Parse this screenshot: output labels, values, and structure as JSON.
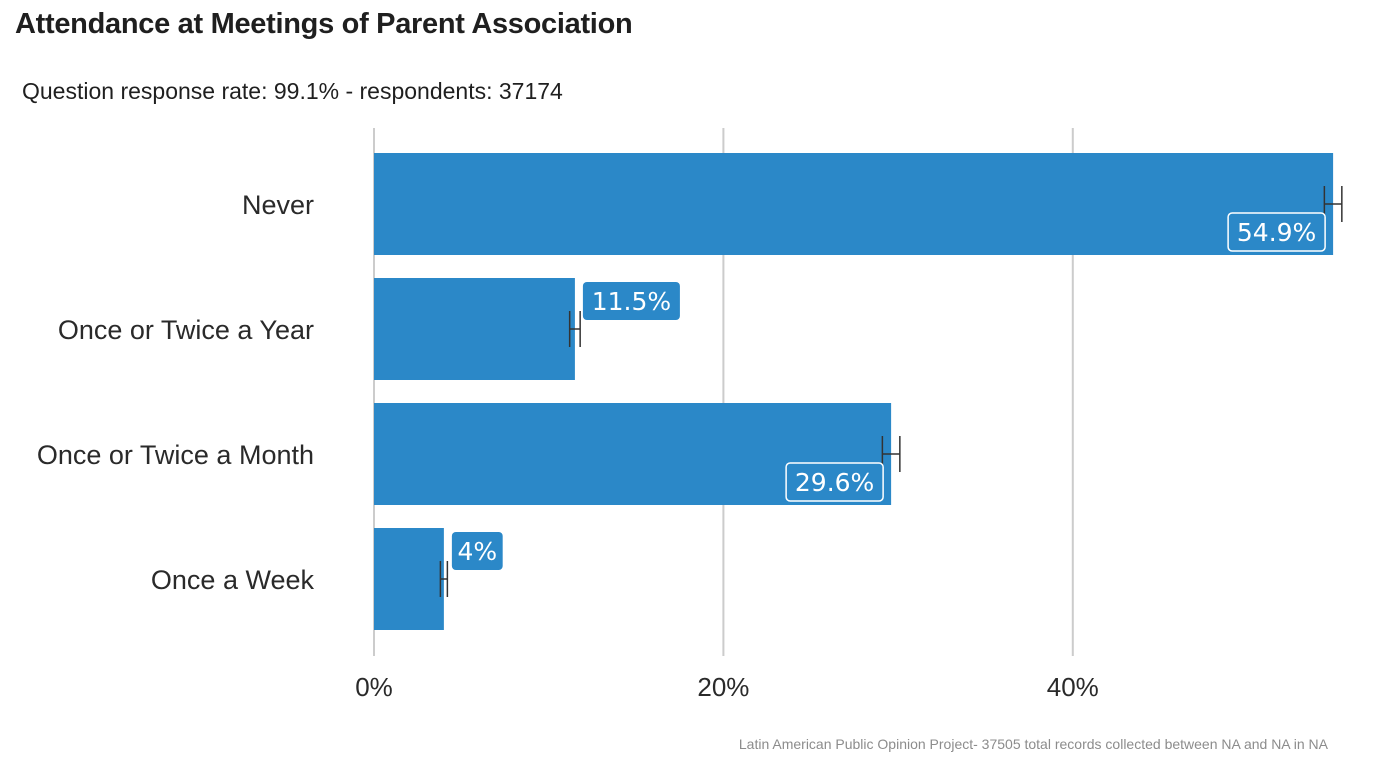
{
  "chart_data": {
    "type": "bar",
    "orientation": "horizontal",
    "title": "Attendance at Meetings of Parent Association",
    "subtitle": "Question response rate: 99.1%  - respondents: 37174",
    "caption": "Latin American Public Opinion Project- 37505 total records collected between NA and NA in  NA",
    "categories": [
      "Never",
      "Once or Twice a Year",
      "Once or Twice a Month",
      "Once a Week"
    ],
    "values": [
      54.9,
      11.5,
      29.6,
      4.0
    ],
    "value_labels": [
      "54.9%",
      "11.5%",
      "29.6%",
      "4%"
    ],
    "error_margin": [
      0.5,
      0.3,
      0.5,
      0.2
    ],
    "xlim": [
      0,
      55
    ],
    "x_ticks": [
      0,
      20,
      40
    ],
    "x_tick_labels": [
      "0%",
      "20%",
      "40%"
    ],
    "grid": "vertical",
    "legend": "none",
    "bar_color": "#2b88c8",
    "error_bar_color": "#333333",
    "grid_color": "#cccccc"
  }
}
